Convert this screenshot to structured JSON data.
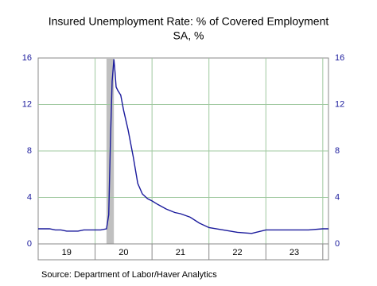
{
  "chart_data": {
    "type": "line",
    "title": "Insured Unemployment Rate: % of Covered Employment",
    "subtitle": "SA, %",
    "source": "Source:  Department of Labor/Haver Analytics",
    "x": [
      2019.0,
      2019.1,
      2019.2,
      2019.3,
      2019.4,
      2019.5,
      2019.6,
      2019.7,
      2019.8,
      2019.9,
      2020.0,
      2020.1,
      2020.2,
      2020.24,
      2020.27,
      2020.3,
      2020.33,
      2020.35,
      2020.37,
      2020.4,
      2020.45,
      2020.5,
      2020.58,
      2020.67,
      2020.75,
      2020.83,
      2020.92,
      2021.0,
      2021.1,
      2021.25,
      2021.4,
      2021.5,
      2021.67,
      2021.83,
      2022.0,
      2022.25,
      2022.5,
      2022.75,
      2023.0,
      2023.25,
      2023.5,
      2023.75,
      2024.0,
      2024.1
    ],
    "series": [
      {
        "name": "Insured Unemployment Rate",
        "color": "#1a1a9c",
        "values": [
          1.3,
          1.3,
          1.3,
          1.2,
          1.2,
          1.1,
          1.1,
          1.1,
          1.2,
          1.2,
          1.2,
          1.2,
          1.3,
          2.5,
          9.0,
          14.0,
          15.9,
          14.8,
          13.5,
          13.2,
          12.8,
          11.5,
          9.8,
          7.5,
          5.2,
          4.3,
          3.9,
          3.7,
          3.4,
          3.0,
          2.7,
          2.6,
          2.3,
          1.8,
          1.4,
          1.2,
          1.0,
          0.9,
          1.2,
          1.2,
          1.2,
          1.2,
          1.3,
          1.3
        ]
      }
    ],
    "recession": [
      2020.2,
      2020.33
    ],
    "xlim": [
      2019.0,
      2024.1
    ],
    "xgrid": [
      2020,
      2021,
      2022,
      2023,
      2024
    ],
    "xticks": [
      {
        "value": 2019.5,
        "label": "19"
      },
      {
        "value": 2020.5,
        "label": "20"
      },
      {
        "value": 2021.5,
        "label": "21"
      },
      {
        "value": 2022.5,
        "label": "22"
      },
      {
        "value": 2023.5,
        "label": "23"
      }
    ],
    "ylim": [
      0,
      16
    ],
    "yticks": [
      0,
      4,
      8,
      12,
      16
    ],
    "grid": true
  }
}
